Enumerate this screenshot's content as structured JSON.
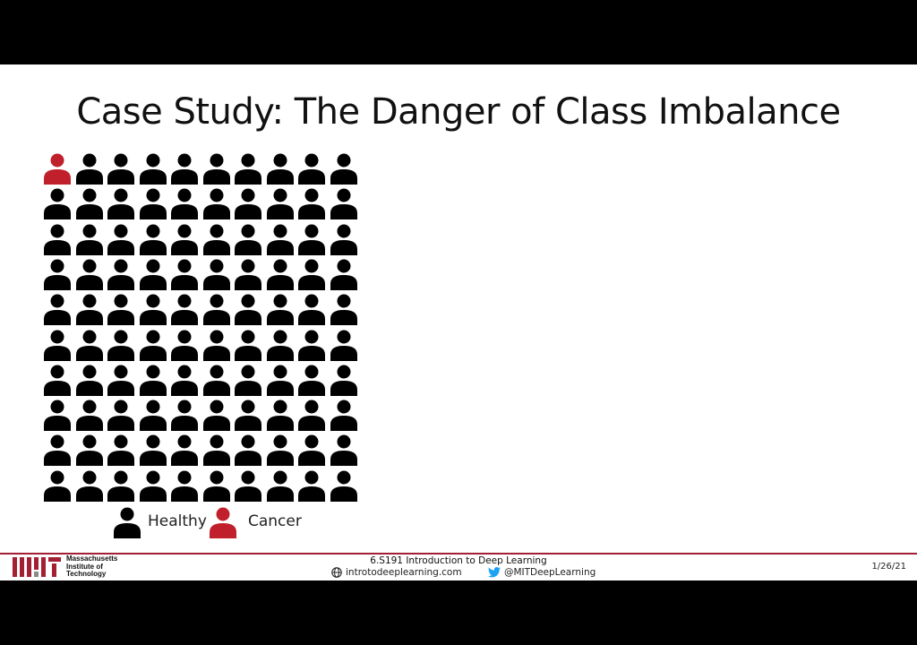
{
  "slide": {
    "title": "Case Study: The Danger of Class Imbalance"
  },
  "grid": {
    "rows": 10,
    "cols": 10,
    "highlighted_index": 0,
    "colors": {
      "healthy": "#000000",
      "cancer": "#c0202b"
    }
  },
  "legend": {
    "healthy_label": "Healthy",
    "cancer_label": "Cancer"
  },
  "footer": {
    "institution_line1": "Massachusetts",
    "institution_line2": "Institute of",
    "institution_line3": "Technology",
    "course": "6.S191 Introduction to Deep Learning",
    "website": "introtodeeplearning.com",
    "twitter": "@MITDeepLearning",
    "date": "1/26/21",
    "accent": "#a31f34",
    "globe_icon": "globe-icon",
    "twitter_icon": "twitter-bird-icon"
  }
}
